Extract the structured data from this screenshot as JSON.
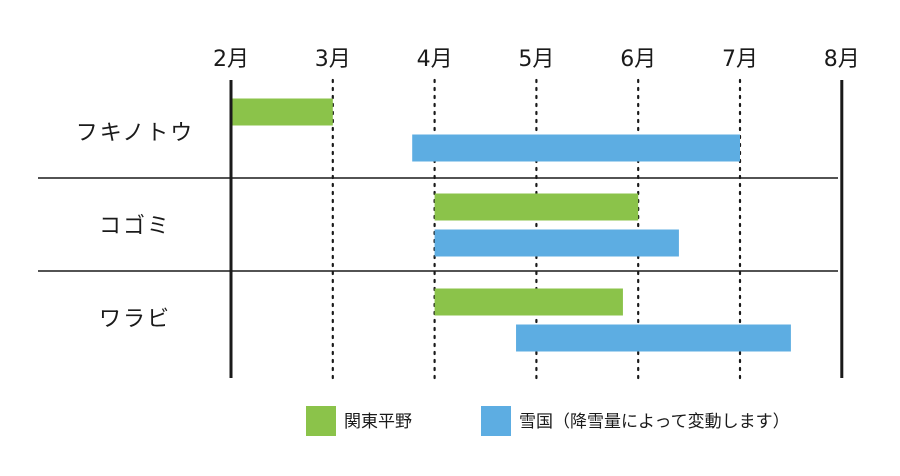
{
  "chart_data": {
    "type": "bar",
    "orientation": "horizontal-range",
    "x_ticks": [
      "2月",
      "3月",
      "4月",
      "5月",
      "6月",
      "7月",
      "8月"
    ],
    "xlim": [
      2,
      8
    ],
    "categories": [
      "フキノトウ",
      "コゴミ",
      "ワラビ"
    ],
    "series": [
      {
        "name": "関東平野",
        "color": "#8bc34a",
        "ranges": [
          [
            2.0,
            3.0
          ],
          [
            4.0,
            6.0
          ],
          [
            4.0,
            5.85
          ]
        ]
      },
      {
        "name": "雪国（降雪量によって変動します）",
        "color": "#5dade2",
        "ranges": [
          [
            3.78,
            7.0
          ],
          [
            4.0,
            6.4
          ],
          [
            4.8,
            7.5
          ]
        ]
      }
    ],
    "grid": "dotted-vertical",
    "legend": "bottom"
  }
}
